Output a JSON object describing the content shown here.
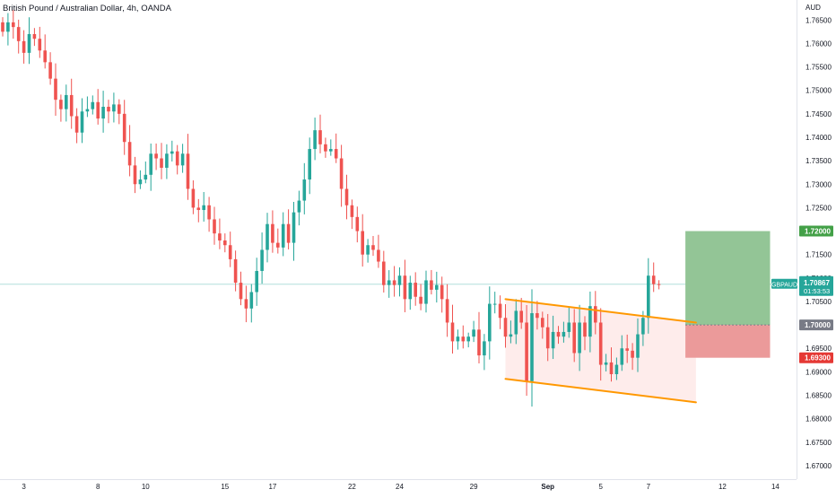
{
  "chart_data": {
    "type": "candlestick",
    "title": "British Pound / Australian Dollar, 4h, OANDA",
    "currency": "AUD",
    "ylim": [
      1.6675,
      1.7685
    ],
    "y_ticks": [
      {
        "value": 1.765,
        "label": "1.76500"
      },
      {
        "value": 1.76,
        "label": "1.76000"
      },
      {
        "value": 1.755,
        "label": "1.75500"
      },
      {
        "value": 1.75,
        "label": "1.75000"
      },
      {
        "value": 1.745,
        "label": "1.74500"
      },
      {
        "value": 1.74,
        "label": "1.74000"
      },
      {
        "value": 1.735,
        "label": "1.73500"
      },
      {
        "value": 1.73,
        "label": "1.73000"
      },
      {
        "value": 1.725,
        "label": "1.72500"
      },
      {
        "value": 1.715,
        "label": "1.71500"
      },
      {
        "value": 1.71,
        "label": "1.71000"
      },
      {
        "value": 1.705,
        "label": "1.70500"
      },
      {
        "value": 1.695,
        "label": "1.69500"
      },
      {
        "value": 1.69,
        "label": "1.69000"
      },
      {
        "value": 1.685,
        "label": "1.68500"
      },
      {
        "value": 1.68,
        "label": "1.68000"
      },
      {
        "value": 1.675,
        "label": "1.67500"
      },
      {
        "value": 1.67,
        "label": "1.67000"
      }
    ],
    "x_ticks": [
      {
        "bar": 4,
        "label": "3",
        "bold": false
      },
      {
        "bar": 18,
        "label": "8",
        "bold": false
      },
      {
        "bar": 27,
        "label": "10",
        "bold": false
      },
      {
        "bar": 42,
        "label": "15",
        "bold": false
      },
      {
        "bar": 51,
        "label": "17",
        "bold": false
      },
      {
        "bar": 66,
        "label": "22",
        "bold": false
      },
      {
        "bar": 75,
        "label": "24",
        "bold": false
      },
      {
        "bar": 89,
        "label": "29",
        "bold": false
      },
      {
        "bar": 103,
        "label": "Sep",
        "bold": true
      },
      {
        "bar": 113,
        "label": "5",
        "bold": false
      },
      {
        "bar": 122,
        "label": "7",
        "bold": false
      },
      {
        "bar": 136,
        "label": "12",
        "bold": false
      },
      {
        "bar": 146,
        "label": "14",
        "bold": false
      }
    ],
    "candle_closes": [
      1.7625,
      1.7645,
      1.7635,
      1.7605,
      1.758,
      1.762,
      1.761,
      1.7585,
      1.756,
      1.7525,
      1.748,
      1.746,
      1.749,
      1.7445,
      1.741,
      1.7455,
      1.746,
      1.7475,
      1.744,
      1.7465,
      1.7455,
      1.747,
      1.745,
      1.739,
      1.734,
      1.73,
      1.731,
      1.732,
      1.7365,
      1.7355,
      1.7335,
      1.7365,
      1.737,
      1.734,
      1.7365,
      1.729,
      1.725,
      1.7245,
      1.7255,
      1.7225,
      1.7195,
      1.718,
      1.717,
      1.714,
      1.709,
      1.7055,
      1.7035,
      1.707,
      1.7115,
      1.716,
      1.7215,
      1.7175,
      1.7165,
      1.7215,
      1.7175,
      1.724,
      1.7265,
      1.731,
      1.7375,
      1.7415,
      1.7385,
      1.737,
      1.7375,
      1.7355,
      1.729,
      1.7255,
      1.723,
      1.72,
      1.715,
      1.717,
      1.716,
      1.7135,
      1.7085,
      1.7095,
      1.7085,
      1.7105,
      1.7055,
      1.709,
      1.706,
      1.7045,
      1.7095,
      1.7075,
      1.7085,
      1.7055,
      1.7005,
      1.6965,
      1.6975,
      1.6965,
      1.6975,
      1.699,
      1.6935,
      1.6965,
      1.7045,
      1.7045,
      1.7015,
      1.6975,
      1.698,
      1.703,
      1.7005,
      1.688,
      1.7025,
      1.7015,
      1.6995,
      1.695,
      1.6985,
      1.6975,
      1.6985,
      1.7005,
      1.694,
      1.7005,
      1.6975,
      1.704,
      1.7005,
      1.6915,
      1.692,
      1.6895,
      1.6915,
      1.695,
      1.6945,
      1.693,
      1.698,
      1.7015,
      1.7105,
      1.7087,
      1.70867
    ],
    "current_price": {
      "symbol": "GBPAUD",
      "value": 1.70867,
      "label": "1.70867",
      "countdown": "01:53:53"
    },
    "channel": {
      "upper": {
        "start": {
          "bar": 95,
          "price": 1.7055
        },
        "end": {
          "bar": 131,
          "price": 1.7005
        }
      },
      "lower": {
        "start": {
          "bar": 95,
          "price": 1.6885
        },
        "end": {
          "bar": 131,
          "price": 1.6835
        }
      }
    },
    "position": {
      "type": "long",
      "entry": {
        "price": 1.7,
        "label": "1.70000"
      },
      "target": {
        "price": 1.72,
        "label": "1.72000"
      },
      "stop": {
        "price": 1.693,
        "label": "1.69300"
      },
      "start_bar": 129,
      "end_bar": 145
    },
    "colors": {
      "up": "#26a69a",
      "down": "#ef5350",
      "channel": "#ff9800",
      "channel_fill": "#fde6e4",
      "profit_zone": "#93c596",
      "loss_zone": "#eb9a9a",
      "target_tag": "#43a047",
      "stop_tag": "#e53935",
      "entry_tag": "#787b86",
      "price_tag": "#26a69a",
      "axis_text": "#131722",
      "border": "#e0e3eb"
    }
  }
}
